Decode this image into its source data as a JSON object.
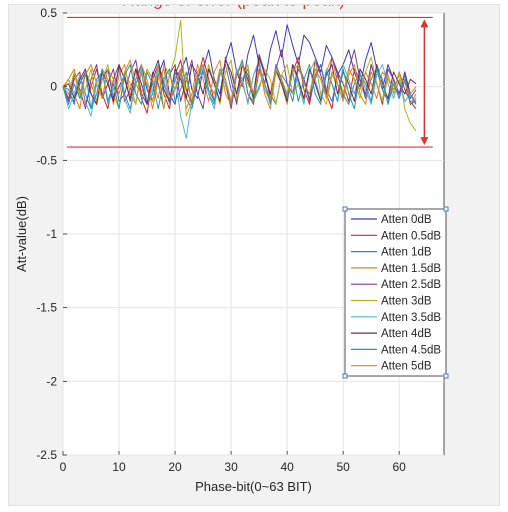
{
  "chart_data": {
    "type": "line",
    "title": "",
    "xlabel": "Phase-bit(0~63 BIT)",
    "ylabel": "Att-value(dB)",
    "xlim": [
      0,
      68
    ],
    "ylim": [
      -2.5,
      0.5
    ],
    "xticks": [
      0,
      10,
      20,
      30,
      40,
      50,
      60
    ],
    "yticks": [
      -2.5,
      -2,
      -1.5,
      -1,
      -0.5,
      0,
      0.5
    ],
    "grid": true,
    "legend_position": "right",
    "x": [
      0,
      1,
      2,
      3,
      4,
      5,
      6,
      7,
      8,
      9,
      10,
      11,
      12,
      13,
      14,
      15,
      16,
      17,
      18,
      19,
      20,
      21,
      22,
      23,
      24,
      25,
      26,
      27,
      28,
      29,
      30,
      31,
      32,
      33,
      34,
      35,
      36,
      37,
      38,
      39,
      40,
      41,
      42,
      43,
      44,
      45,
      46,
      47,
      48,
      49,
      50,
      51,
      52,
      53,
      54,
      55,
      56,
      57,
      58,
      59,
      60,
      61,
      62,
      63
    ],
    "series": [
      {
        "name": "Atten 0dB",
        "color": "#3a3ac8",
        "values": [
          0,
          -0.05,
          -0.1,
          0.02,
          0.1,
          -0.05,
          -0.12,
          0.05,
          0.12,
          -0.08,
          0,
          0.08,
          -0.1,
          0.05,
          0.15,
          -0.02,
          -0.1,
          0.08,
          0.18,
          -0.05,
          -0.12,
          0.1,
          0.2,
          -0.02,
          -0.08,
          0.12,
          0.25,
          0.05,
          -0.05,
          0.18,
          0.3,
          0.1,
          0,
          0.22,
          0.35,
          0.15,
          0.02,
          0.25,
          0.38,
          0.2,
          0.42,
          0.28,
          0.15,
          0.35,
          0.3,
          0.2,
          0.1,
          0.28,
          0.2,
          0.08,
          0.15,
          0.25,
          0.1,
          0,
          0.18,
          0.3,
          0.12,
          -0.02,
          0.15,
          0.05,
          -0.08,
          0.1,
          -0.05,
          -0.12
        ]
      },
      {
        "name": "Atten 0.5dB",
        "color": "#d62728",
        "values": [
          0,
          -0.08,
          0.05,
          0.1,
          -0.12,
          0,
          0.12,
          -0.05,
          -0.15,
          0.05,
          0.15,
          -0.1,
          -0.02,
          0.12,
          -0.08,
          -0.18,
          0.05,
          0.15,
          -0.05,
          -0.15,
          0.08,
          0.18,
          -0.02,
          -0.12,
          0.05,
          0.2,
          0.05,
          -0.1,
          0.1,
          0.02,
          -0.15,
          0.08,
          0.18,
          -0.05,
          -0.12,
          0.12,
          0.02,
          -0.1,
          0.15,
          0.05,
          -0.08,
          0.1,
          0.2,
          -0.02,
          -0.12,
          0.08,
          0.15,
          -0.05,
          -0.15,
          0.1,
          0.02,
          -0.1,
          0.12,
          0.05,
          -0.08,
          0.15,
          0.02,
          -0.12,
          0.08,
          -0.05,
          0.1,
          -0.02,
          -0.1,
          -0.15
        ]
      },
      {
        "name": "Atten 1dB",
        "color": "#2e86c1",
        "values": [
          0,
          -0.02,
          -0.12,
          0.08,
          -0.05,
          -0.15,
          0.05,
          0.1,
          -0.1,
          -0.02,
          0.12,
          -0.05,
          -0.15,
          0.02,
          0.1,
          -0.12,
          -0.05,
          0.15,
          0.02,
          -0.1,
          0.05,
          0.12,
          -0.08,
          -0.15,
          0.02,
          0.1,
          -0.05,
          -0.12,
          0.08,
          0.15,
          -0.02,
          -0.1,
          0.05,
          0.12,
          -0.08,
          0,
          0.1,
          -0.05,
          -0.12,
          0.08,
          0.02,
          -0.1,
          0.12,
          0.05,
          -0.08,
          0.05,
          0.15,
          -0.02,
          -0.1,
          0.08,
          -0.05,
          -0.12,
          0.02,
          0.1,
          -0.08,
          0.05,
          0.12,
          -0.02,
          -0.1,
          0.05,
          -0.05,
          0.08,
          -0.12,
          -0.08
        ]
      },
      {
        "name": "Atten 1.5dB",
        "color": "#e67e22",
        "values": [
          0,
          0.05,
          -0.05,
          -0.15,
          0.1,
          0.02,
          -0.1,
          0.12,
          0.05,
          -0.12,
          0.08,
          0.15,
          -0.05,
          -0.12,
          0.1,
          0.02,
          -0.15,
          0.05,
          0.12,
          -0.1,
          -0.02,
          0.1,
          -0.15,
          -0.05,
          0.15,
          0.05,
          -0.1,
          0.1,
          0.18,
          -0.05,
          -0.12,
          0.12,
          0.02,
          -0.1,
          0.08,
          0.15,
          -0.05,
          -0.15,
          0.1,
          0.02,
          -0.12,
          0.15,
          0.05,
          -0.1,
          0.12,
          0.02,
          -0.08,
          0.1,
          0.2,
          0.02,
          -0.1,
          0.08,
          0.15,
          -0.05,
          -0.12,
          0.1,
          0.02,
          -0.1,
          0.12,
          0.05,
          -0.08,
          0.05,
          -0.12,
          -0.05
        ]
      },
      {
        "name": "Atten 2.5dB",
        "color": "#7d3c98",
        "values": [
          0,
          -0.1,
          0.08,
          -0.02,
          -0.15,
          0.05,
          0.15,
          -0.08,
          0.02,
          0.12,
          -0.1,
          -0.05,
          0.1,
          0.18,
          -0.05,
          -0.12,
          0.1,
          0.02,
          -0.15,
          0.08,
          0.15,
          -0.1,
          0.05,
          0.18,
          -0.05,
          -0.15,
          0.12,
          0.02,
          -0.1,
          0.2,
          0.05,
          -0.12,
          0.15,
          0.08,
          -0.05,
          0.22,
          0.1,
          -0.08,
          0.12,
          0.25,
          0.02,
          -0.05,
          0.15,
          0.05,
          -0.1,
          0.18,
          0.08,
          -0.05,
          0.2,
          0.1,
          -0.08,
          0.12,
          0.25,
          0.05,
          -0.05,
          0.15,
          0.02,
          -0.1,
          0.12,
          0.05,
          -0.05,
          0.1,
          -0.08,
          -0.02
        ]
      },
      {
        "name": "Atten 3dB",
        "color": "#b7b21a",
        "values": [
          0,
          -0.05,
          0.1,
          -0.08,
          -0.02,
          0.12,
          -0.12,
          0.05,
          0.15,
          -0.05,
          -0.15,
          0.1,
          0.02,
          -0.12,
          0.15,
          0.05,
          -0.1,
          0.12,
          -0.15,
          0.08,
          0.2,
          0.45,
          -0.2,
          -0.1,
          0.05,
          -0.05,
          0.15,
          0.02,
          -0.12,
          0.1,
          0.18,
          -0.08,
          0.05,
          0.15,
          -0.1,
          -0.02,
          0.12,
          0.05,
          -0.12,
          0.08,
          0.15,
          -0.05,
          0.02,
          -0.1,
          0.1,
          0.18,
          -0.05,
          -0.12,
          0.08,
          0.02,
          -0.1,
          0.12,
          0.05,
          -0.08,
          0.1,
          0.2,
          0.02,
          -0.1,
          0.08,
          -0.05,
          0.1,
          -0.15,
          -0.25,
          -0.3
        ]
      },
      {
        "name": "Atten 3.5dB",
        "color": "#5dade2",
        "values": [
          0,
          -0.15,
          -0.05,
          0.08,
          -0.1,
          -0.2,
          0.02,
          0.1,
          -0.12,
          -0.02,
          0.12,
          -0.08,
          -0.18,
          0.05,
          0.12,
          -0.1,
          -0.02,
          0.15,
          0.05,
          -0.12,
          0.08,
          -0.2,
          -0.35,
          -0.1,
          0.05,
          0.12,
          -0.05,
          -0.15,
          0.1,
          0.02,
          -0.1,
          0.12,
          0.05,
          -0.12,
          0.08,
          0.18,
          -0.02,
          -0.1,
          0.12,
          0.05,
          -0.05,
          0.15,
          0.02,
          -0.12,
          0.1,
          0.05,
          -0.08,
          0.12,
          0.02,
          -0.1,
          0.15,
          0.05,
          -0.05,
          0.1,
          -0.02,
          -0.12,
          0.08,
          0.15,
          0.02,
          -0.08,
          0.05,
          -0.1,
          -0.05,
          -0.1
        ]
      },
      {
        "name": "Atten 4dB",
        "color": "#6b2d4f",
        "values": [
          0,
          0.02,
          -0.08,
          0.05,
          0.12,
          -0.05,
          -0.12,
          0.1,
          0.02,
          -0.1,
          0.15,
          0.05,
          -0.08,
          0.12,
          0.02,
          -0.12,
          0.08,
          0.18,
          -0.02,
          -0.1,
          0.12,
          0.05,
          -0.08,
          0.15,
          0.08,
          -0.05,
          0.12,
          0.02,
          -0.1,
          0.18,
          0.1,
          -0.05,
          0.15,
          0.05,
          -0.08,
          0.2,
          0.08,
          -0.05,
          0.12,
          0.02,
          -0.1,
          0.15,
          0.05,
          -0.08,
          0.12,
          0.02,
          -0.1,
          0.08,
          0.15,
          -0.05,
          0.1,
          0.02,
          -0.1,
          0.12,
          0.05,
          -0.05,
          0.15,
          0.02,
          -0.08,
          0.1,
          0.02,
          -0.05,
          0.05,
          0.02
        ]
      },
      {
        "name": "Atten 4.5dB",
        "color": "#1f9bb5",
        "values": [
          0,
          -0.12,
          0.02,
          -0.08,
          0.1,
          -0.15,
          -0.05,
          0.12,
          -0.1,
          0.02,
          -0.15,
          0.08,
          0.15,
          -0.05,
          -0.12,
          0.1,
          0.02,
          -0.15,
          0.05,
          0.12,
          -0.1,
          -0.02,
          0.1,
          -0.12,
          0.05,
          0.15,
          -0.02,
          -0.1,
          0.12,
          0.05,
          -0.12,
          0.08,
          0.18,
          -0.05,
          -0.1,
          0.1,
          0.02,
          -0.12,
          0.15,
          0.05,
          -0.08,
          0.1,
          -0.1,
          0.05,
          0.15,
          -0.05,
          -0.12,
          0.1,
          0.02,
          -0.1,
          0.12,
          -0.05,
          -0.15,
          0.08,
          0.02,
          -0.1,
          0.12,
          0.05,
          -0.12,
          0.02,
          -0.08,
          0.05,
          -0.12,
          -0.1
        ]
      },
      {
        "name": "Atten 5dB",
        "color": "#d68910",
        "values": [
          0,
          0.05,
          0.12,
          -0.05,
          0.08,
          0.15,
          0.02,
          -0.08,
          0.12,
          0.05,
          -0.05,
          0.1,
          0.18,
          0.02,
          -0.05,
          0.12,
          0.05,
          -0.08,
          0.15,
          0.08,
          -0.02,
          0.12,
          0.05,
          -0.1,
          0.1,
          0.15,
          0.02,
          -0.05,
          0.12,
          0.05,
          -0.1,
          0.08,
          0.15,
          0.02,
          -0.05,
          0.1,
          0.02,
          -0.08,
          0.12,
          0.05,
          -0.05,
          0.1,
          0.15,
          0.02,
          -0.05,
          0.12,
          0.05,
          -0.08,
          0.1,
          0.02,
          -0.05,
          0.12,
          0.05,
          -0.02,
          0.1,
          0.02,
          -0.08,
          0.1,
          0.05,
          -0.02,
          0.08,
          0.02,
          -0.05,
          0
        ]
      }
    ],
    "annotations": {
      "error_label": "Range of error (peak to peak)",
      "error_upper": 0.47,
      "error_lower": -0.41,
      "error_x_end": 66,
      "arrow_x": 64.5,
      "color": "#e03030"
    }
  }
}
